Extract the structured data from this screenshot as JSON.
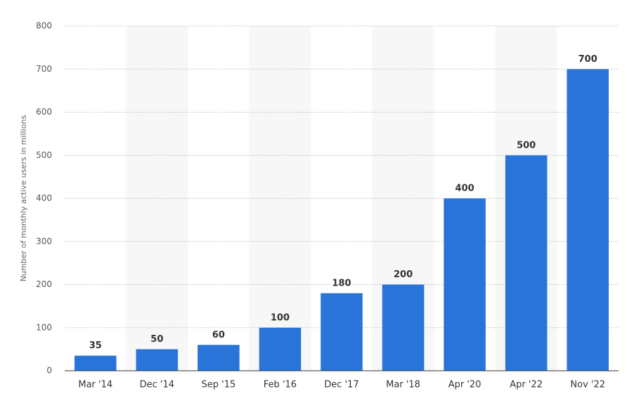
{
  "chart_data": {
    "type": "bar",
    "y_label": "Number of monthly active users in millions",
    "categories": [
      "Mar '14",
      "Dec '14",
      "Sep '15",
      "Feb '16",
      "Dec '17",
      "Mar '18",
      "Apr '20",
      "Apr '22",
      "Nov '22"
    ],
    "values": [
      35,
      50,
      60,
      100,
      180,
      200,
      400,
      500,
      700
    ],
    "color": "#2874d9",
    "ylim": [
      0,
      800
    ],
    "yticks": [
      0,
      100,
      200,
      300,
      400,
      500,
      600,
      700,
      800
    ],
    "grid": true
  }
}
